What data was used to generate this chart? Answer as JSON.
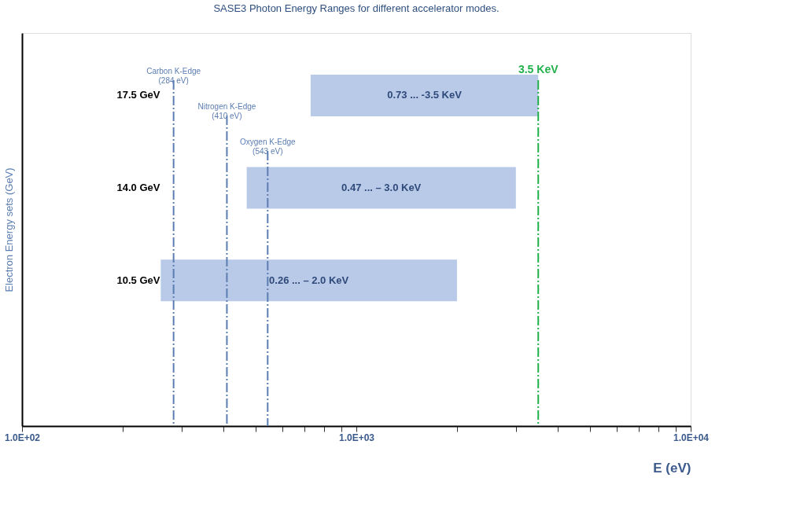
{
  "chart_data": {
    "type": "bar",
    "orientation": "horizontal",
    "log": "x",
    "title": "SASE3  Photon Energy Ranges for different accelerator modes.",
    "xlabel": "E (eV)",
    "ylabel": "Electron Energy sets  (GeV)",
    "categories": [
      "17.5 GeV",
      "14.0 GeV",
      "10.5 GeV"
    ],
    "base": [
      730,
      470,
      260
    ],
    "values": [
      2770,
      2530,
      1740
    ],
    "color": "#b4c7e7",
    "annotations": [
      "0.73  ... -3.5 KeV",
      "0.47  ... – 3.0 KeV",
      "0.26  ... – 2.0 KeV"
    ],
    "xlim": [
      100,
      10000
    ],
    "xticks": [
      {
        "value": 100,
        "label": "1.0E+02"
      },
      {
        "value": 200,
        "label": null
      },
      {
        "value": 300,
        "label": null
      },
      {
        "value": 400,
        "label": null
      },
      {
        "value": 500,
        "label": null
      },
      {
        "value": 600,
        "label": null
      },
      {
        "value": 700,
        "label": null
      },
      {
        "value": 800,
        "label": null
      },
      {
        "value": 900,
        "label": null
      },
      {
        "value": 1000,
        "label": "1.0E+03"
      },
      {
        "value": 2000,
        "label": null
      },
      {
        "value": 3000,
        "label": null
      },
      {
        "value": 4000,
        "label": null
      },
      {
        "value": 5000,
        "label": null
      },
      {
        "value": 6000,
        "label": null
      },
      {
        "value": 7000,
        "label": null
      },
      {
        "value": 8000,
        "label": null
      },
      {
        "value": 9000,
        "label": null
      },
      {
        "value": 10000,
        "label": "1.0E+04"
      }
    ],
    "ref_lines": [
      {
        "axis": "x",
        "value": 284,
        "label": "Carbon K-Edge\n(284 eV)",
        "color": "#5b7db1",
        "line_style": "dashed"
      },
      {
        "axis": "x",
        "value": 410,
        "label": "Nitrogen K-Edge\n(410 eV)",
        "color": "#5b7db1",
        "line_style": "dashed"
      },
      {
        "axis": "x",
        "value": 543,
        "label": "Oxygen K-Edge\n(543 eV)",
        "color": "#5b7db1",
        "line_style": "dashed"
      },
      {
        "axis": "x",
        "value": 3500,
        "label": "3.5 KeV",
        "color": "#22b04b",
        "line_style": "dashed"
      }
    ],
    "grid": false
  }
}
